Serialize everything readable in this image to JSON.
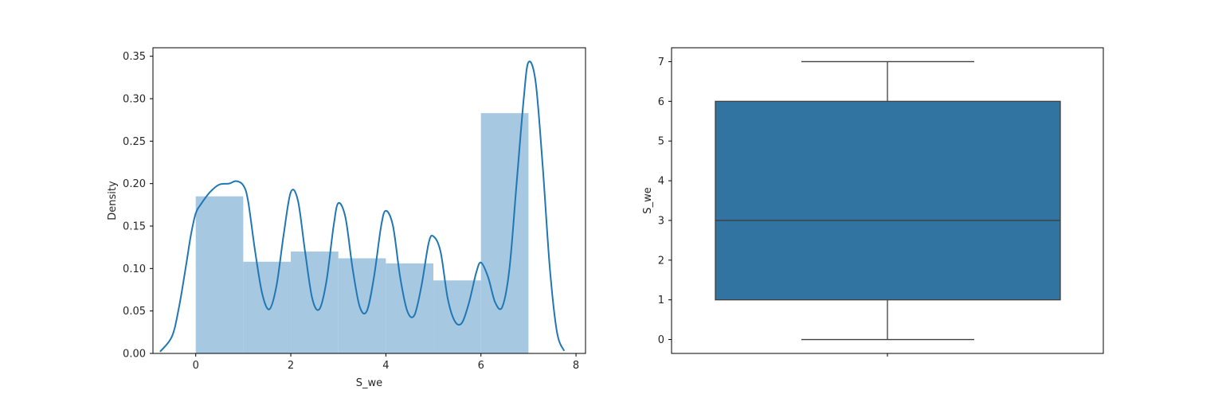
{
  "chart_data": [
    {
      "type": "bar",
      "subtype": "histogram-with-kde",
      "xlabel": "S_we",
      "ylabel": "Density",
      "xlim": [
        -0.9,
        8.2
      ],
      "ylim": [
        0,
        0.36
      ],
      "xticks": [
        0,
        2,
        4,
        6,
        8
      ],
      "yticks": [
        0.0,
        0.05,
        0.1,
        0.15,
        0.2,
        0.25,
        0.3,
        0.35
      ],
      "bar_color": "#a6c8e1",
      "line_color": "#1f77b4",
      "bins": [
        {
          "x0": 0,
          "x1": 1,
          "value": 0.185
        },
        {
          "x0": 1,
          "x1": 2,
          "value": 0.108
        },
        {
          "x0": 2,
          "x1": 3,
          "value": 0.12
        },
        {
          "x0": 3,
          "x1": 4,
          "value": 0.112
        },
        {
          "x0": 4,
          "x1": 5,
          "value": 0.106
        },
        {
          "x0": 5,
          "x1": 6,
          "value": 0.086
        },
        {
          "x0": 6,
          "x1": 7,
          "value": 0.283
        }
      ],
      "kde": {
        "x": [
          -0.75,
          -0.5,
          -0.35,
          -0.2,
          -0.1,
          0,
          0.1,
          0.3,
          0.5,
          0.7,
          0.85,
          1.0,
          1.1,
          1.25,
          1.4,
          1.55,
          1.7,
          1.85,
          2.0,
          2.15,
          2.3,
          2.45,
          2.6,
          2.75,
          2.9,
          3.0,
          3.15,
          3.3,
          3.45,
          3.6,
          3.75,
          3.9,
          4.0,
          4.15,
          4.3,
          4.45,
          4.6,
          4.75,
          4.9,
          5.0,
          5.15,
          5.3,
          5.45,
          5.6,
          5.75,
          5.9,
          6.0,
          6.15,
          6.3,
          6.45,
          6.6,
          6.75,
          6.9,
          7.0,
          7.15,
          7.3,
          7.45,
          7.6,
          7.75
        ],
        "y": [
          0.002,
          0.02,
          0.055,
          0.105,
          0.14,
          0.165,
          0.175,
          0.19,
          0.199,
          0.2,
          0.203,
          0.198,
          0.18,
          0.12,
          0.07,
          0.052,
          0.08,
          0.14,
          0.19,
          0.18,
          0.12,
          0.065,
          0.052,
          0.085,
          0.15,
          0.177,
          0.16,
          0.1,
          0.055,
          0.05,
          0.09,
          0.15,
          0.168,
          0.15,
          0.09,
          0.05,
          0.045,
          0.08,
          0.13,
          0.138,
          0.12,
          0.065,
          0.038,
          0.036,
          0.06,
          0.095,
          0.107,
          0.09,
          0.06,
          0.055,
          0.1,
          0.2,
          0.3,
          0.343,
          0.32,
          0.22,
          0.1,
          0.025,
          0.003
        ]
      }
    },
    {
      "type": "boxplot",
      "xlabel": "",
      "ylabel": "S_we",
      "ylim": [
        -0.35,
        7.35
      ],
      "yticks": [
        0,
        1,
        2,
        3,
        4,
        5,
        6,
        7
      ],
      "box_color": "#3274a1",
      "whisker_low": 0,
      "q1": 1,
      "median": 3,
      "q3": 6,
      "whisker_high": 7
    }
  ]
}
